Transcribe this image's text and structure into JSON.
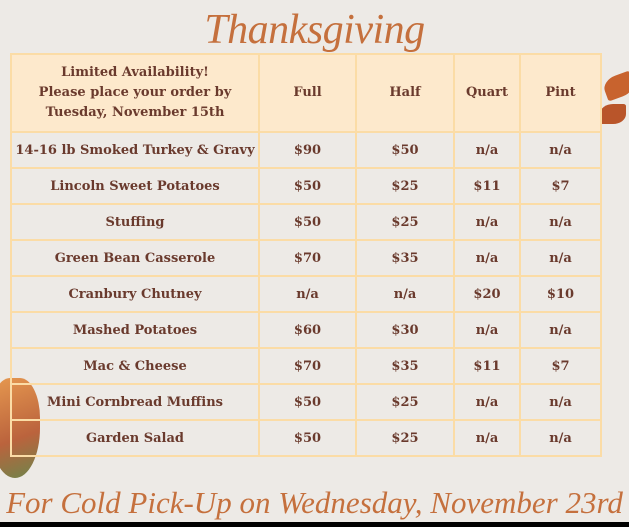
{
  "title": "Thanksgiving",
  "table": {
    "header": [
      "Limited Availability!\nPlease place your order by\nTuesday, November 15th",
      "Full",
      "Half",
      "Quart",
      "Pint"
    ],
    "header_lines": [
      "Limited Availability!",
      "Please place your order by",
      "Tuesday, November 15th"
    ],
    "rows": [
      [
        "14-16 lb Smoked Turkey & Gravy",
        "$90",
        "$50",
        "n/a",
        "n/a"
      ],
      [
        "Lincoln Sweet Potatoes",
        "$50",
        "$25",
        "$11",
        "$7"
      ],
      [
        "Stuffing",
        "$50",
        "$25",
        "n/a",
        "n/a"
      ],
      [
        "Green Bean Casserole",
        "$70",
        "$35",
        "n/a",
        "n/a"
      ],
      [
        "Cranbury Chutney",
        "n/a",
        "n/a",
        "$20",
        "$10"
      ],
      [
        "Mashed Potatoes",
        "$60",
        "$30",
        "n/a",
        "n/a"
      ],
      [
        "Mac & Cheese",
        "$70",
        "$35",
        "$11",
        "$7"
      ],
      [
        "Mini Cornbread Muffins",
        "$50",
        "$25",
        "n/a",
        "n/a"
      ],
      [
        "Garden Salad",
        "$50",
        "$25",
        "n/a",
        "n/a"
      ]
    ]
  },
  "footer": "For Cold Pick-Up  on Wednesday, November 23rd",
  "colors": {
    "accent": "#c5703d",
    "text": "#6a3a2d",
    "header_bg": "#fde9cc",
    "grid": "#fbdca6",
    "background": "#edeae6"
  }
}
